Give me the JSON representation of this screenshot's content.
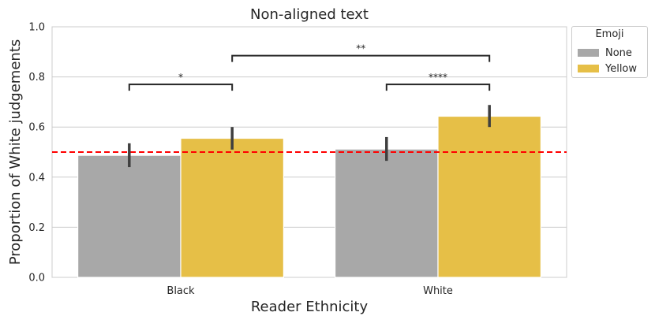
{
  "chart_data": {
    "type": "bar",
    "title": "Non-aligned text",
    "xlabel": "Reader Ethnicity",
    "ylabel": "Proportion of White judgements",
    "categories": [
      "Black",
      "White"
    ],
    "ylim": [
      0,
      1
    ],
    "yticks": [
      "0.0",
      "0.2",
      "0.4",
      "0.6",
      "0.8",
      "1.0"
    ],
    "grid": true,
    "legend": {
      "title": "Emoji",
      "placement": "outside-top-right",
      "items": [
        {
          "label": "None",
          "color": "#a8a8a8"
        },
        {
          "label": "Yellow",
          "color": "#e6bf47"
        }
      ]
    },
    "series": [
      {
        "name": "None",
        "color": "#a8a8a8",
        "values": [
          0.487,
          0.512
        ],
        "err_low": [
          0.44,
          0.465
        ],
        "err_high": [
          0.535,
          0.56
        ]
      },
      {
        "name": "Yellow",
        "color": "#e6bf47",
        "values": [
          0.555,
          0.643
        ],
        "err_low": [
          0.51,
          0.6
        ],
        "err_high": [
          0.6,
          0.688
        ]
      }
    ],
    "reference_line": {
      "y": 0.5,
      "color": "#ff0000",
      "style": "dashed"
    },
    "annotations": [
      {
        "label": "*",
        "from": [
          "Black",
          "None"
        ],
        "to": [
          "Black",
          "Yellow"
        ],
        "level": 0.77
      },
      {
        "label": "****",
        "from": [
          "White",
          "None"
        ],
        "to": [
          "White",
          "Yellow"
        ],
        "level": 0.77
      },
      {
        "label": "**",
        "from": [
          "Black",
          "Yellow"
        ],
        "to": [
          "White",
          "Yellow"
        ],
        "level": 0.885
      }
    ]
  }
}
